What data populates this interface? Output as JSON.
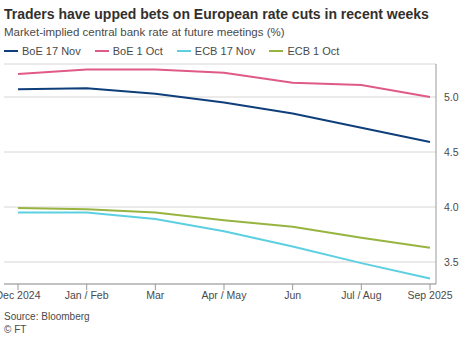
{
  "chart_data": {
    "type": "line",
    "title": "Traders have upped bets on European rate cuts in recent weeks",
    "subtitle": "Market-implied central bank rate at future meetings (%)",
    "source": "Source: Bloomberg",
    "credit": "© FT",
    "categories": [
      "Dec 2024",
      "Jan / Feb",
      "Mar",
      "Apr / May",
      "Jun",
      "Jul / Aug",
      "Sep 2025"
    ],
    "series": [
      {
        "name": "BoE 17 Nov",
        "color": "#0f3f7a",
        "values": [
          5.07,
          5.08,
          5.03,
          4.95,
          4.85,
          4.72,
          4.59
        ]
      },
      {
        "name": "BoE 1 Oct",
        "color": "#e05a86",
        "values": [
          5.21,
          5.25,
          5.25,
          5.22,
          5.13,
          5.11,
          5.0
        ]
      },
      {
        "name": "ECB 17 Nov",
        "color": "#5ccfe0",
        "values": [
          3.95,
          3.95,
          3.89,
          3.78,
          3.64,
          3.49,
          3.35
        ]
      },
      {
        "name": "ECB 1 Oct",
        "color": "#98b440",
        "values": [
          3.99,
          3.98,
          3.95,
          3.88,
          3.82,
          3.72,
          3.63
        ]
      }
    ],
    "ylim": [
      3.3,
      5.3
    ],
    "yticks": [
      {
        "value": 3.5,
        "label": "3.5"
      },
      {
        "value": 4.0,
        "label": "4.0"
      },
      {
        "value": 4.5,
        "label": "4.5"
      },
      {
        "value": 5.0,
        "label": "5.0"
      }
    ],
    "grid": true,
    "legend": "top"
  }
}
